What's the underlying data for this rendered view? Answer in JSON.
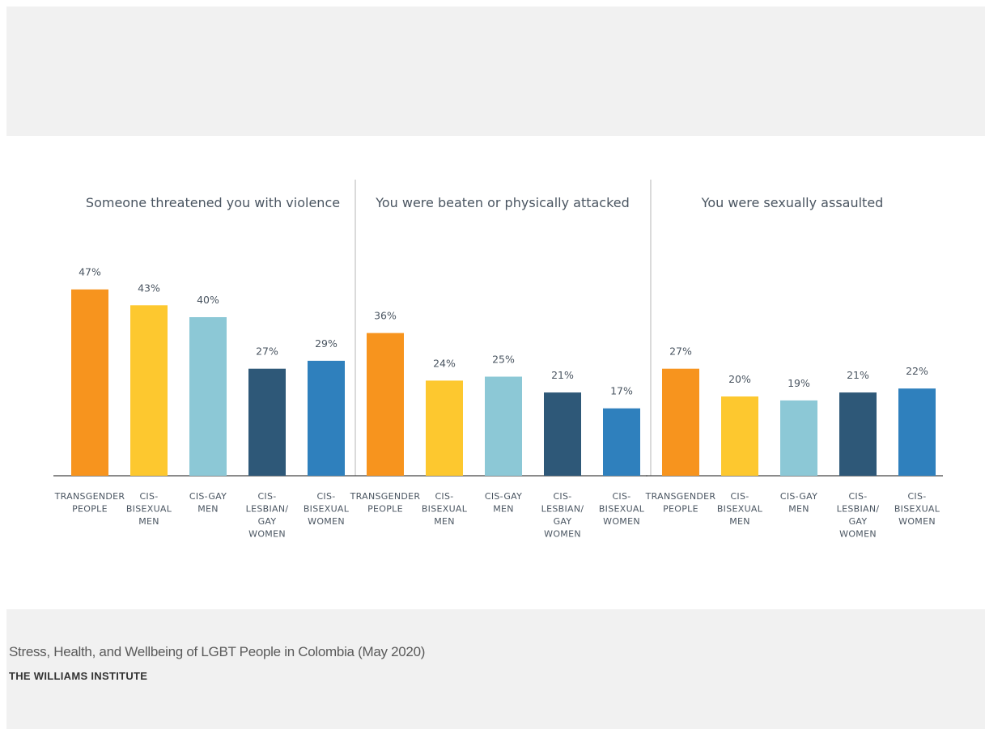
{
  "chart_data": {
    "type": "bar",
    "categories": [
      "TRANSGENDER PEOPLE",
      "CIS-BISEXUAL MEN",
      "CIS-GAY MEN",
      "CIS-LESBIAN/ GAY WOMEN",
      "CIS-BISEXUAL WOMEN"
    ],
    "category_lines": [
      [
        "TRANSGENDER",
        "PEOPLE"
      ],
      [
        "CIS-",
        "BISEXUAL",
        "MEN"
      ],
      [
        "CIS-GAY",
        "MEN"
      ],
      [
        "CIS-",
        "LESBIAN/",
        "GAY",
        "WOMEN"
      ],
      [
        "CIS-",
        "BISEXUAL",
        "WOMEN"
      ]
    ],
    "colors": [
      "#f7941e",
      "#fdc82f",
      "#8cc8d6",
      "#2e5878",
      "#2f80bd"
    ],
    "unit": "%",
    "panels": [
      {
        "title": "Someone threatened you with violence",
        "values": [
          47,
          43,
          40,
          27,
          29
        ]
      },
      {
        "title": "You were beaten or physically attacked",
        "values": [
          36,
          24,
          25,
          21,
          17
        ]
      },
      {
        "title": "You were sexually assaulted",
        "values": [
          27,
          20,
          19,
          21,
          22
        ]
      }
    ],
    "grid": false
  },
  "footer": {
    "caption": "Stress, Health, and Wellbeing of LGBT People in Colombia (May 2020)",
    "publisher": "THE WILLIAMS INSTITUTE"
  }
}
